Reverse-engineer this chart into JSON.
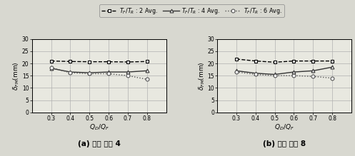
{
  "x": [
    0.3,
    0.4,
    0.5,
    0.6,
    0.7,
    0.8
  ],
  "panel_a": {
    "series1": [
      21.0,
      20.8,
      20.7,
      20.7,
      20.6,
      20.8
    ],
    "series2": [
      18.0,
      16.5,
      16.2,
      16.5,
      16.5,
      17.0
    ],
    "series3": [
      18.3,
      16.2,
      15.8,
      15.8,
      15.0,
      13.5
    ]
  },
  "panel_b": {
    "series1": [
      21.8,
      21.0,
      20.5,
      21.0,
      21.0,
      21.0
    ],
    "series2": [
      17.0,
      16.0,
      15.5,
      16.5,
      17.0,
      18.5
    ],
    "series3": [
      16.5,
      15.5,
      15.0,
      15.0,
      14.7,
      14.0
    ]
  },
  "xlabel": "$Q_D/Q_F$",
  "ylabel": "$\\delta_{FM}$(mm)",
  "xlim": [
    0.2,
    0.9
  ],
  "ylim": [
    0,
    30
  ],
  "yticks": [
    0,
    5,
    10,
    15,
    20,
    25,
    30
  ],
  "xticks": [
    0.3,
    0.4,
    0.5,
    0.6,
    0.7,
    0.8
  ],
  "xtick_labels": [
    "0.3",
    "0.4",
    "0.5",
    "0.6",
    "0.7",
    "0.8"
  ],
  "legend_labels": [
    "$T_F/T_R$ : 2 Avg.",
    "$T_F/T_R$ : 4 Avg.",
    "$T_F/T_R$ : 6 Avg."
  ],
  "subtitle_a": "(a) 변형 비율 4",
  "subtitle_b": "(b) 변형 비율 8",
  "bg_color": "#e8e8e0",
  "grid_color": "#b0b0b0",
  "fig_bg": "#d8d8d0"
}
